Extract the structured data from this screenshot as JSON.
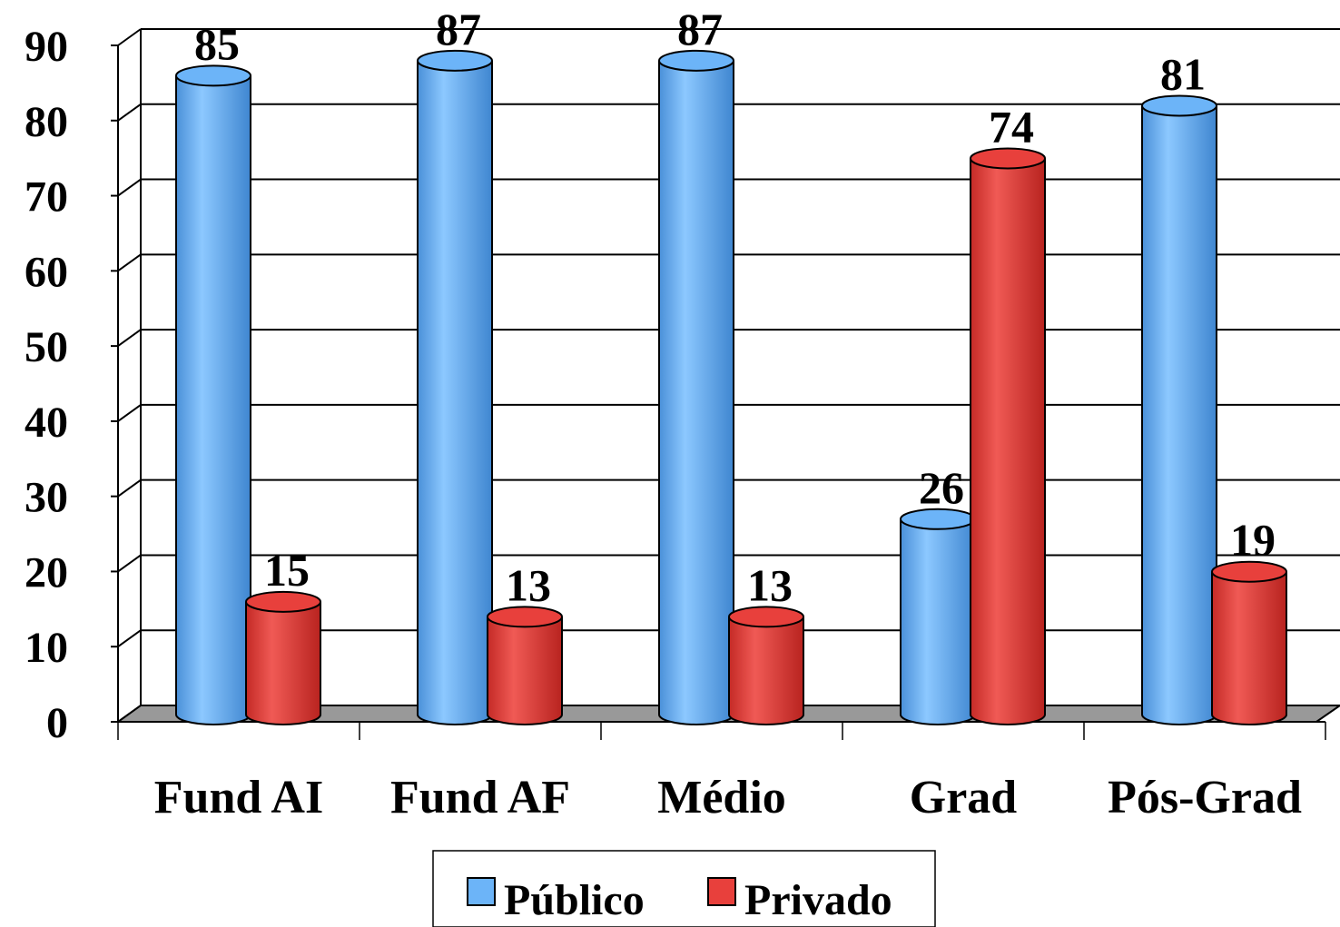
{
  "chart_data": {
    "type": "bar",
    "categories": [
      "Fund AI",
      "Fund AF",
      "Médio",
      "Grad",
      "Pós-Grad"
    ],
    "series": [
      {
        "name": "Público",
        "color": "#6cb4f8",
        "values": [
          85,
          87,
          87,
          26,
          81
        ]
      },
      {
        "name": "Privado",
        "color": "#e8403c",
        "values": [
          15,
          13,
          13,
          74,
          19
        ]
      }
    ],
    "ylim": [
      0,
      90
    ],
    "yticks": [
      0,
      10,
      20,
      30,
      40,
      50,
      60,
      70,
      80,
      90
    ],
    "grid": true,
    "legend": "bottom"
  }
}
